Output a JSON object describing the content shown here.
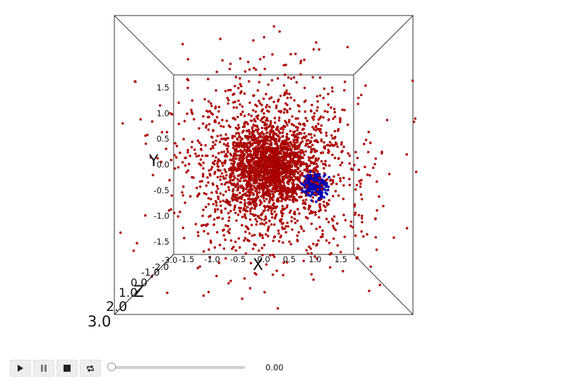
{
  "chart_data": {
    "type": "scatter",
    "title": "",
    "projection": "3d",
    "axes": {
      "x": {
        "label": "X",
        "ticks": [
          "-1.5",
          "-1.0",
          "-0.5",
          "0.0",
          "0.5",
          "1.0",
          "1.5"
        ]
      },
      "y": {
        "label": "Y",
        "ticks": [
          "1.5",
          "1.0",
          "0.5",
          "0.0",
          "-0.5",
          "-1.0",
          "-1.5"
        ]
      },
      "z": {
        "label": "Z",
        "ticks": [
          "-3.0",
          "-2.0",
          "-1.0",
          "0.0",
          "1.0",
          "2.0",
          "3.0"
        ]
      }
    },
    "xlim": [
      -1.75,
      1.75
    ],
    "ylim": [
      -1.75,
      1.75
    ],
    "zlim": [
      -3.0,
      3.0
    ],
    "series": [
      {
        "color": "#cc0000",
        "point_count": 3000,
        "center": [
          0.0,
          0.0
        ],
        "distribution": "dense core near origin with wide sparse spread beyond the axes box"
      },
      {
        "color": "#0000cc",
        "point_count": 260,
        "center": [
          1.0,
          -0.4
        ],
        "distribution": "tight cluster of radius about 0.3"
      }
    ],
    "grid": false,
    "legend": "none"
  },
  "controls": {
    "time_value": "0.00",
    "slider_value": 0.0
  }
}
